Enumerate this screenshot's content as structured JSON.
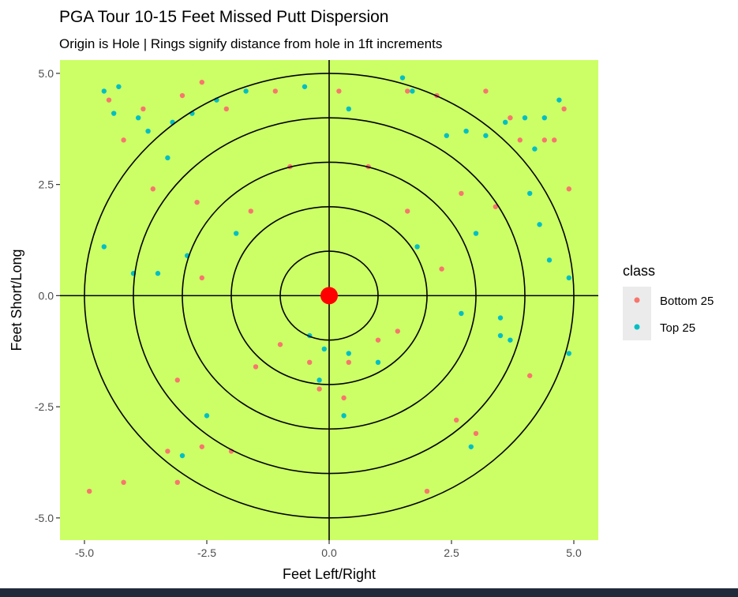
{
  "chart_data": {
    "type": "scatter",
    "title": "PGA Tour 10-15 Feet Missed Putt Dispersion",
    "subtitle": "Origin is Hole | Rings signify distance from hole in 1ft increments",
    "xlabel": "Feet Left/Right",
    "ylabel": "Feet Short/Long",
    "xlim": [
      -5.5,
      5.5
    ],
    "ylim": [
      -5.5,
      5.3
    ],
    "xticks": [
      -5.0,
      -2.5,
      0.0,
      2.5,
      5.0
    ],
    "xtick_labels": [
      "-5.0",
      "-2.5",
      "0.0",
      "2.5",
      "5.0"
    ],
    "yticks": [
      -5.0,
      -2.5,
      0.0,
      2.5,
      5.0
    ],
    "ytick_labels": [
      "-5.0",
      "-2.5",
      "0.0",
      "2.5",
      "5.0"
    ],
    "rings": [
      1,
      2,
      3,
      4,
      5
    ],
    "hole": [
      0,
      0
    ],
    "grid": false,
    "panel_background": "#ccff66",
    "legend": {
      "title": "class",
      "placement": "right",
      "entries": [
        {
          "label": "Bottom 25",
          "color": "#f8766d"
        },
        {
          "label": "Top 25",
          "color": "#00bfc4"
        }
      ]
    },
    "series": [
      {
        "name": "Bottom 25",
        "color": "#f8766d",
        "points": [
          [
            -4.9,
            -4.4
          ],
          [
            -4.2,
            -4.2
          ],
          [
            -3.3,
            -3.5
          ],
          [
            -3.1,
            -4.2
          ],
          [
            -3.1,
            -1.9
          ],
          [
            -2.6,
            -3.4
          ],
          [
            -2.0,
            -3.5
          ],
          [
            2.6,
            -2.8
          ],
          [
            3.0,
            -3.1
          ],
          [
            2.0,
            -4.4
          ],
          [
            4.1,
            -1.8
          ],
          [
            4.9,
            2.4
          ],
          [
            4.4,
            3.5
          ],
          [
            4.6,
            3.5
          ],
          [
            4.8,
            4.2
          ],
          [
            3.9,
            3.5
          ],
          [
            3.7,
            4.0
          ],
          [
            3.2,
            4.6
          ],
          [
            2.2,
            4.5
          ],
          [
            1.6,
            4.6
          ],
          [
            0.2,
            4.6
          ],
          [
            -1.1,
            4.6
          ],
          [
            -2.1,
            4.2
          ],
          [
            -2.6,
            4.8
          ],
          [
            -3.0,
            4.5
          ],
          [
            -3.8,
            4.2
          ],
          [
            -4.2,
            3.5
          ],
          [
            -4.5,
            4.4
          ],
          [
            -0.8,
            2.9
          ],
          [
            0.8,
            2.9
          ],
          [
            -1.6,
            1.9
          ],
          [
            1.6,
            1.9
          ],
          [
            -2.7,
            2.1
          ],
          [
            2.7,
            2.3
          ],
          [
            -3.6,
            2.4
          ],
          [
            3.4,
            2.0
          ],
          [
            -0.4,
            -1.5
          ],
          [
            0.4,
            -1.5
          ],
          [
            -1.0,
            -1.1
          ],
          [
            1.0,
            -1.0
          ],
          [
            -0.2,
            -2.1
          ],
          [
            0.3,
            -2.3
          ],
          [
            -1.5,
            -1.6
          ],
          [
            1.4,
            -0.8
          ],
          [
            -2.6,
            0.4
          ],
          [
            2.3,
            0.6
          ]
        ]
      },
      {
        "name": "Top 25",
        "color": "#00bfc4",
        "points": [
          [
            -4.6,
            4.6
          ],
          [
            -4.3,
            4.7
          ],
          [
            -4.4,
            4.1
          ],
          [
            -3.9,
            4.0
          ],
          [
            -3.7,
            3.7
          ],
          [
            -3.3,
            3.1
          ],
          [
            -4.6,
            1.1
          ],
          [
            -4.0,
            0.5
          ],
          [
            -3.5,
            0.5
          ],
          [
            -3.0,
            -3.6
          ],
          [
            -2.5,
            -2.7
          ],
          [
            -0.2,
            -1.9
          ],
          [
            0.4,
            -1.3
          ],
          [
            1.0,
            -1.5
          ],
          [
            2.7,
            -0.4
          ],
          [
            3.5,
            -0.5
          ],
          [
            3.7,
            -1.0
          ],
          [
            4.9,
            -1.3
          ],
          [
            4.9,
            0.4
          ],
          [
            4.5,
            0.8
          ],
          [
            4.3,
            1.6
          ],
          [
            4.1,
            2.3
          ],
          [
            4.2,
            3.3
          ],
          [
            4.7,
            4.4
          ],
          [
            4.4,
            4.0
          ],
          [
            4.0,
            4.0
          ],
          [
            3.6,
            3.9
          ],
          [
            3.2,
            3.6
          ],
          [
            2.8,
            3.7
          ],
          [
            2.4,
            3.6
          ],
          [
            1.7,
            4.6
          ],
          [
            1.5,
            4.9
          ],
          [
            0.4,
            4.2
          ],
          [
            -0.5,
            4.7
          ],
          [
            -1.7,
            4.6
          ],
          [
            -2.3,
            4.4
          ],
          [
            -2.8,
            4.1
          ],
          [
            -3.2,
            3.9
          ],
          [
            -2.9,
            0.9
          ],
          [
            -1.9,
            1.4
          ],
          [
            1.8,
            1.1
          ],
          [
            3.0,
            1.4
          ],
          [
            3.5,
            -0.9
          ],
          [
            2.9,
            -3.4
          ],
          [
            0.3,
            -2.7
          ],
          [
            -0.4,
            -0.9
          ],
          [
            -0.1,
            -1.2
          ]
        ]
      }
    ]
  }
}
